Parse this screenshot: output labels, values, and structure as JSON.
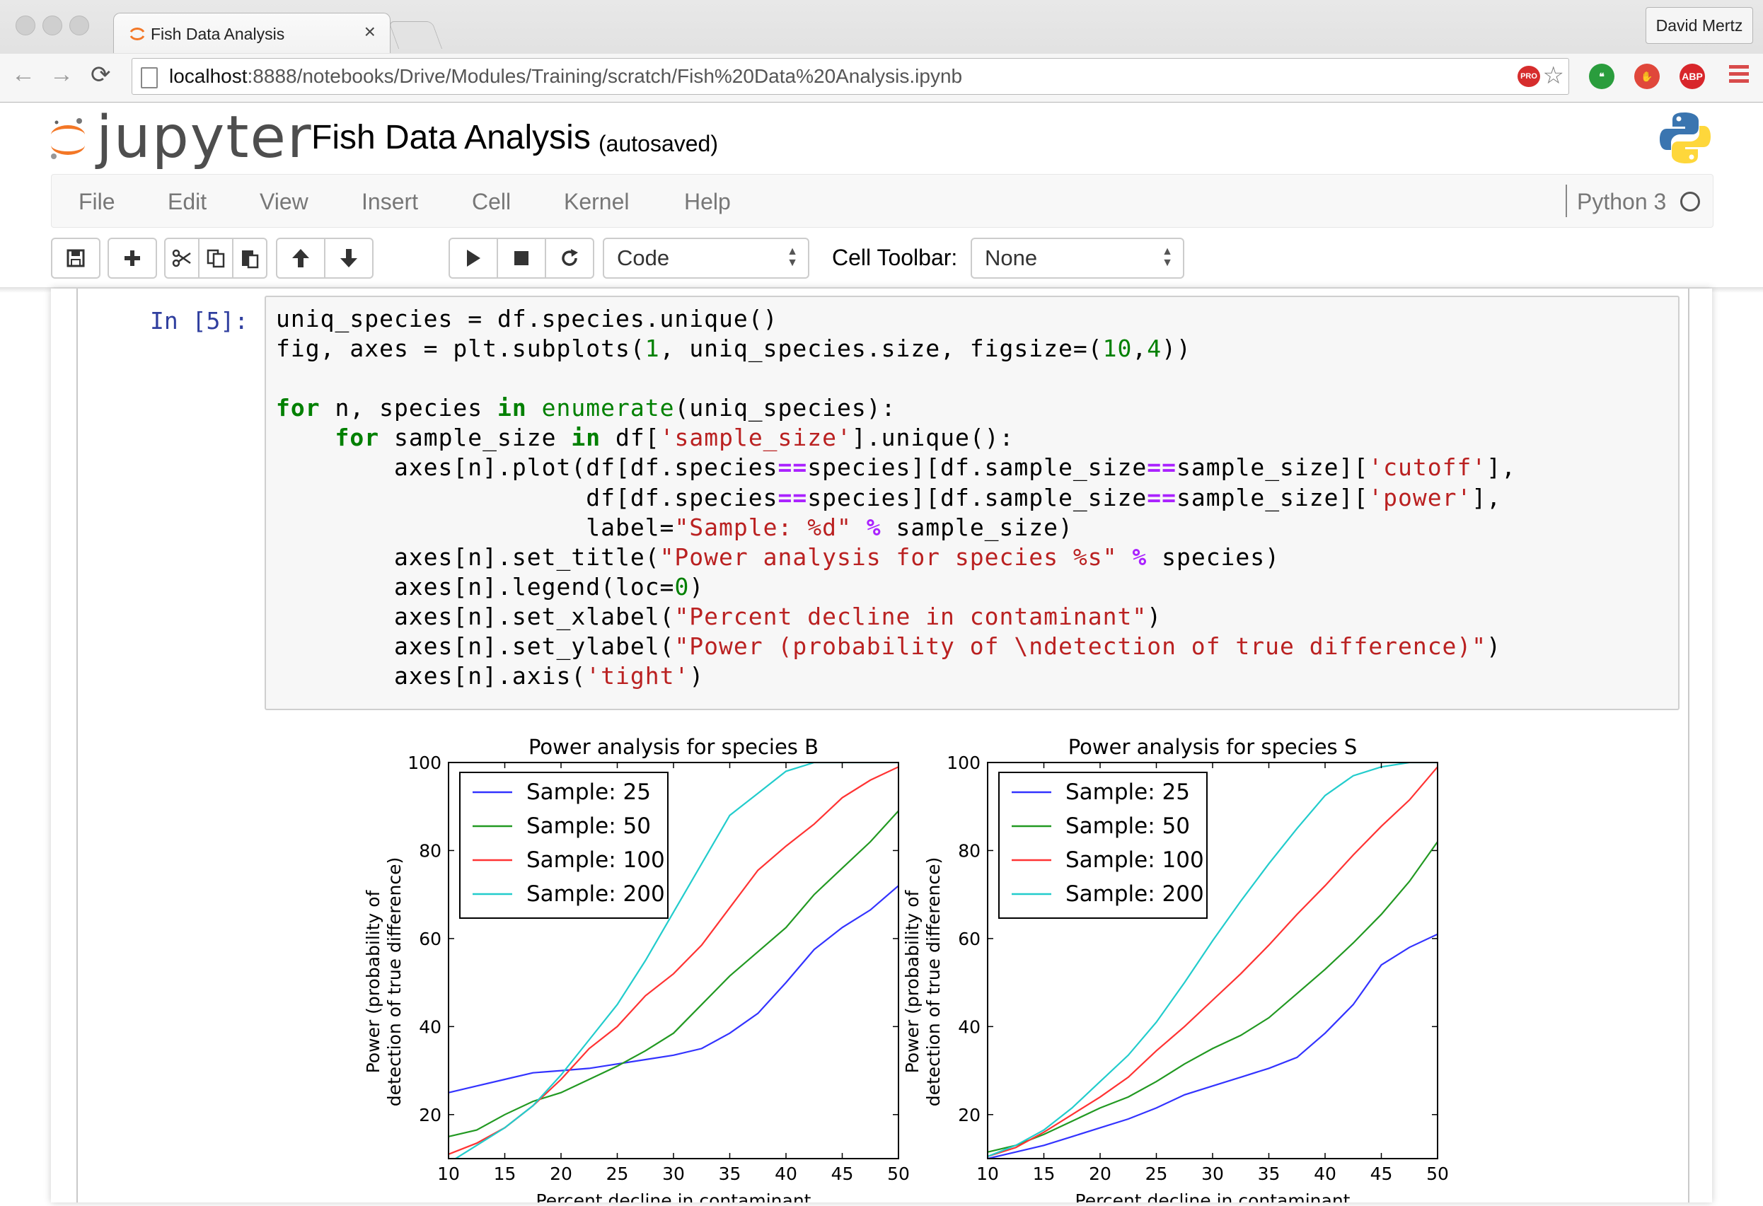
{
  "browser": {
    "tab_title": "Fish Data Analysis",
    "tab_close": "×",
    "profile_name": "David Mertz",
    "url_host": "localhost",
    "url_path": ":8888/notebooks/Drive/Modules/Training/scratch/Fish%20Data%20Analysis.ipynb",
    "nav": {
      "back": "←",
      "forward": "→",
      "reload": "⟳"
    },
    "omnibox_badges": {
      "pro": "PRO",
      "star": "☆"
    },
    "extensions": [
      {
        "name": "hangouts-icon",
        "color": "#2a9d3d",
        "glyph": "❝"
      },
      {
        "name": "stop-hand-icon",
        "color": "#e0473b",
        "glyph": "✋"
      },
      {
        "name": "adblock-plus-icon",
        "color": "#d8262b",
        "glyph": "ABP"
      }
    ]
  },
  "jupyter": {
    "logo_text": "jupyter",
    "notebook_name": "Fish Data Analysis",
    "save_status": "(autosaved)",
    "menu": [
      "File",
      "Edit",
      "View",
      "Insert",
      "Cell",
      "Kernel",
      "Help"
    ],
    "kernel_name": "Python 3",
    "toolbar": {
      "cell_type": "Code",
      "cell_toolbar_label": "Cell Toolbar:",
      "cell_toolbar_value": "None",
      "select_arrows": "▲▼"
    }
  },
  "cell": {
    "prompt": "In [5]:",
    "code_lines": [
      "uniq_species = df.species.unique()",
      "fig, axes = plt.subplots(1, uniq_species.size, figsize=(10,4))",
      "",
      "for n, species in enumerate(uniq_species):",
      "    for sample_size in df['sample_size'].unique():",
      "        axes[n].plot(df[df.species==species][df.sample_size==sample_size]['cutoff'],",
      "                     df[df.species==species][df.sample_size==sample_size]['power'],",
      "                     label=\"Sample: %d\" % sample_size)",
      "        axes[n].set_title(\"Power analysis for species %s\" % species)",
      "        axes[n].legend(loc=0)",
      "        axes[n].set_xlabel(\"Percent decline in contaminant\")",
      "        axes[n].set_ylabel(\"Power (probability of \\ndetection of true difference)\")",
      "        axes[n].axis('tight')"
    ]
  },
  "chart_data": [
    {
      "type": "line",
      "title": "Power analysis for species B",
      "xlabel": "Percent decline in contaminant",
      "ylabel": [
        "Power (probability of",
        "detection of true difference)"
      ],
      "xlim": [
        10,
        50
      ],
      "ylim": [
        10,
        100
      ],
      "xticks": [
        10,
        15,
        20,
        25,
        30,
        35,
        40,
        45,
        50
      ],
      "yticks": [
        20,
        40,
        60,
        80,
        100
      ],
      "legend": "top-left",
      "x": [
        10,
        12.5,
        15,
        17.5,
        20,
        22.5,
        25,
        27.5,
        30,
        32.5,
        35,
        37.5,
        40,
        42.5,
        45,
        47.5,
        50
      ],
      "series": [
        {
          "name": "Sample: 25",
          "color": "#3333ff",
          "values": [
            25,
            26.5,
            28,
            29.5,
            30,
            30.5,
            31.5,
            32.5,
            33.5,
            35,
            38.5,
            43,
            50,
            57.5,
            62.5,
            66.5,
            72
          ]
        },
        {
          "name": "Sample: 50",
          "color": "#229922",
          "values": [
            15,
            16.5,
            20,
            23,
            25,
            28,
            31,
            34.5,
            38.5,
            45,
            51.5,
            57,
            62.5,
            70,
            76,
            82,
            89
          ]
        },
        {
          "name": "Sample: 100",
          "color": "#ff3333",
          "values": [
            11,
            13.5,
            17,
            22,
            28,
            35,
            40,
            47,
            52,
            58.5,
            67,
            75.5,
            81,
            86,
            92,
            96,
            99
          ]
        },
        {
          "name": "Sample: 200",
          "color": "#22cccc",
          "values": [
            9,
            13,
            17,
            22,
            29,
            37,
            45,
            55,
            66,
            77,
            88,
            93,
            98,
            100,
            100,
            100,
            100
          ]
        }
      ]
    },
    {
      "type": "line",
      "title": "Power analysis for species S",
      "xlabel": "Percent decline in contaminant",
      "ylabel": [
        "Power (probability of",
        "detection of true difference)"
      ],
      "xlim": [
        10,
        50
      ],
      "ylim": [
        10,
        100
      ],
      "xticks": [
        10,
        15,
        20,
        25,
        30,
        35,
        40,
        45,
        50
      ],
      "yticks": [
        20,
        40,
        60,
        80,
        100
      ],
      "legend": "top-left",
      "x": [
        10,
        12.5,
        15,
        17.5,
        20,
        22.5,
        25,
        27.5,
        30,
        32.5,
        35,
        37.5,
        40,
        42.5,
        45,
        47.5,
        50
      ],
      "series": [
        {
          "name": "Sample: 25",
          "color": "#3333ff",
          "values": [
            10,
            11.5,
            13,
            15,
            17,
            19,
            21.5,
            24.5,
            26.5,
            28.5,
            30.5,
            33,
            38.5,
            45,
            54,
            58,
            61
          ]
        },
        {
          "name": "Sample: 50",
          "color": "#229922",
          "values": [
            11.5,
            13,
            15.5,
            18.5,
            21.5,
            24,
            27.5,
            31.5,
            35,
            38,
            42,
            47.5,
            53,
            59,
            65.5,
            73,
            82
          ]
        },
        {
          "name": "Sample: 100",
          "color": "#ff3333",
          "values": [
            10.5,
            12.5,
            16,
            20,
            24,
            28.5,
            34.5,
            40,
            46,
            52,
            58.5,
            65.5,
            72,
            79,
            85.5,
            91.5,
            99
          ]
        },
        {
          "name": "Sample: 200",
          "color": "#22cccc",
          "values": [
            10.5,
            13,
            16.5,
            21.5,
            27.5,
            33.5,
            41,
            50,
            59.5,
            68.5,
            77,
            85,
            92.5,
            97,
            99,
            100,
            100
          ]
        }
      ]
    }
  ]
}
